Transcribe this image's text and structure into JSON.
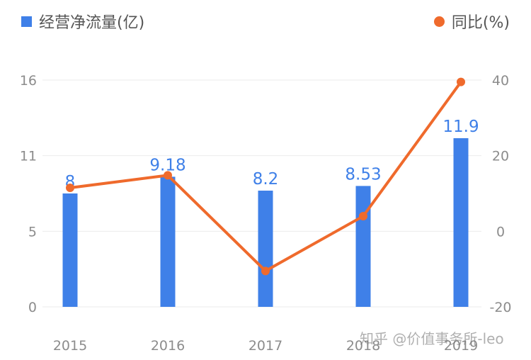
{
  "colors": {
    "bar": "#3f80e8",
    "line": "#ef6a2c",
    "label": "#3f80e8",
    "grid": "#ebebeb",
    "tick": "#8c8c8c"
  },
  "chart_data": {
    "type": "bar",
    "categories": [
      "2015",
      "2016",
      "2017",
      "2018",
      "2019"
    ],
    "series": [
      {
        "name": "经营净流量(亿)",
        "type": "bar",
        "axis": "left",
        "values": [
          8,
          9.18,
          8.2,
          8.53,
          11.9
        ],
        "labels": [
          "8",
          "9.18",
          "8.2",
          "8.53",
          "11.9"
        ]
      },
      {
        "name": "同比(%)",
        "type": "line",
        "axis": "right",
        "values": [
          11.5,
          14.8,
          -10.5,
          4,
          39.5
        ]
      }
    ],
    "y_left": {
      "ticks": [
        "0",
        "5",
        "11",
        "16"
      ],
      "tick_values": [
        0,
        5.33,
        10.67,
        16
      ],
      "range": [
        0,
        16
      ]
    },
    "y_right": {
      "ticks": [
        "-20",
        "0",
        "20",
        "40"
      ],
      "tick_values": [
        -20,
        0,
        20,
        40
      ],
      "range": [
        -20,
        40
      ]
    },
    "legend_position": "top",
    "grid": true
  },
  "watermark": "知乎 @价值事务所-leo"
}
